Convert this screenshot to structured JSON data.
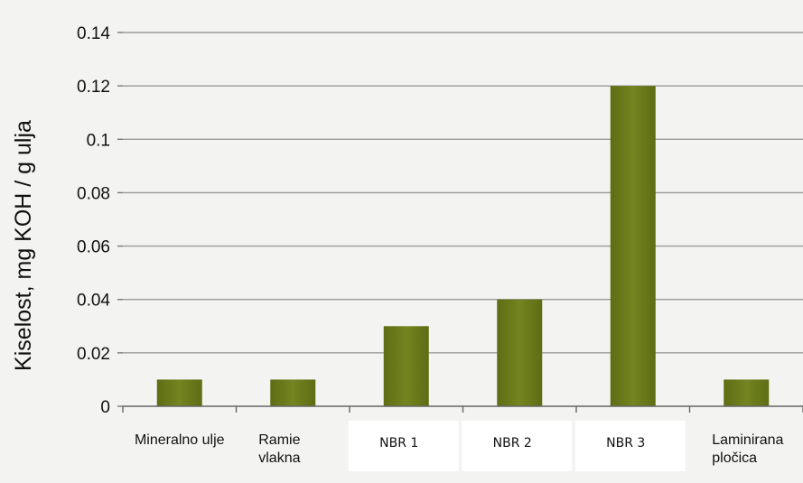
{
  "chart_data": {
    "type": "bar",
    "title": "",
    "xlabel": "",
    "ylabel": "Kiselost, mg KOH / g ulja",
    "categories": [
      "Mineralno ulje",
      "Ramie vlakna",
      "NBR 1",
      "NBR 2",
      "NBR 3",
      "Laminirana pločica"
    ],
    "values": [
      0.01,
      0.01,
      0.03,
      0.04,
      0.12,
      0.01
    ],
    "ylim": [
      0,
      0.14
    ],
    "yticks": [
      "0",
      "0.02",
      "0.04",
      "0.06",
      "0.08",
      "0.1",
      "0.12",
      "0.14"
    ],
    "grid": true,
    "legend": "none",
    "bar_color": "#6f7f1c",
    "bar_color_dark": "#5a6a12"
  }
}
